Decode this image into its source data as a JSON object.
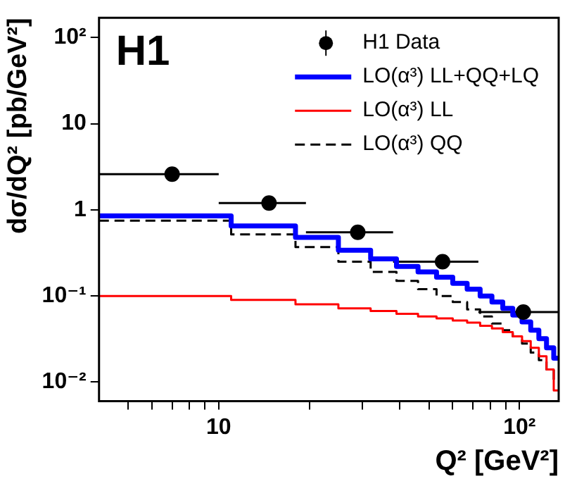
{
  "chart_data": {
    "type": "step",
    "title": "H1",
    "xlabel": "Q² [GeV²]",
    "ylabel": "dσ/dQ² [pb/GeV²]",
    "log": "xy",
    "xlim": [
      4,
      135
    ],
    "ylim": [
      0.006,
      170
    ],
    "xticks": [
      {
        "value": 5,
        "label": null
      },
      {
        "value": 6,
        "label": null
      },
      {
        "value": 7,
        "label": null
      },
      {
        "value": 8,
        "label": null
      },
      {
        "value": 9,
        "label": null
      },
      {
        "value": 10,
        "label": "10"
      },
      {
        "value": 20,
        "label": null
      },
      {
        "value": 30,
        "label": null
      },
      {
        "value": 40,
        "label": null
      },
      {
        "value": 50,
        "label": null
      },
      {
        "value": 60,
        "label": null
      },
      {
        "value": 70,
        "label": null
      },
      {
        "value": 80,
        "label": null
      },
      {
        "value": 90,
        "label": null
      },
      {
        "value": 100,
        "label": "10²"
      }
    ],
    "yticks": [
      {
        "value": 0.01,
        "label": "10⁻²"
      },
      {
        "value": 0.1,
        "label": "10⁻¹"
      },
      {
        "value": 1,
        "label": "1"
      },
      {
        "value": 10,
        "label": "10"
      },
      {
        "value": 100,
        "label": "10²"
      }
    ],
    "grid": false,
    "legend": "top right",
    "marker": "none",
    "series": [
      {
        "name": "H1 Data",
        "type": "scatter",
        "marker": "circle",
        "color": "#000000",
        "x": [
          7,
          14.7,
          29,
          55.5,
          103
        ],
        "values": [
          2.6,
          1.2,
          0.55,
          0.25,
          0.065
        ],
        "xerrors": [
          [
            4,
            10
          ],
          [
            10,
            19.5
          ],
          [
            19.5,
            38
          ],
          [
            38,
            73
          ],
          [
            73,
            135
          ]
        ]
      },
      {
        "name": "LO(α³) LL+QQ+LQ",
        "color": "#0000ff",
        "x": [
          4,
          11,
          18,
          25,
          32,
          39,
          46,
          53,
          60,
          67,
          74,
          81,
          88,
          95,
          102,
          109,
          116,
          123,
          130,
          135
        ],
        "values": [
          0.85,
          0.65,
          0.48,
          0.34,
          0.27,
          0.22,
          0.19,
          0.165,
          0.14,
          0.12,
          0.1,
          0.085,
          0.072,
          0.06,
          0.05,
          0.04,
          0.032,
          0.025,
          0.019,
          0.019
        ]
      },
      {
        "name": "LO(α³) LL",
        "color": "#ff0000",
        "x": [
          4,
          11,
          18,
          25,
          32,
          39,
          46,
          53,
          60,
          67,
          74,
          81,
          88,
          95,
          102,
          109,
          116,
          123,
          130,
          135
        ],
        "values": [
          0.1,
          0.09,
          0.08,
          0.072,
          0.067,
          0.062,
          0.058,
          0.055,
          0.052,
          0.049,
          0.045,
          0.042,
          0.038,
          0.034,
          0.03,
          0.025,
          0.02,
          0.014,
          0.008,
          0.008
        ]
      },
      {
        "name": "LO(α³) QQ",
        "color": "#000000",
        "line_style": "dashed",
        "x": [
          4,
          11,
          18,
          25,
          32,
          39,
          46,
          53,
          60,
          67,
          74,
          81,
          88,
          95,
          102,
          109,
          116,
          123,
          130,
          135
        ],
        "values": [
          0.75,
          0.52,
          0.37,
          0.25,
          0.19,
          0.15,
          0.12,
          0.1,
          0.085,
          0.07,
          0.058,
          0.048,
          0.04,
          0.034,
          0.028,
          0.022,
          0.018,
          0.014,
          0.0105,
          0.0105
        ]
      }
    ]
  }
}
